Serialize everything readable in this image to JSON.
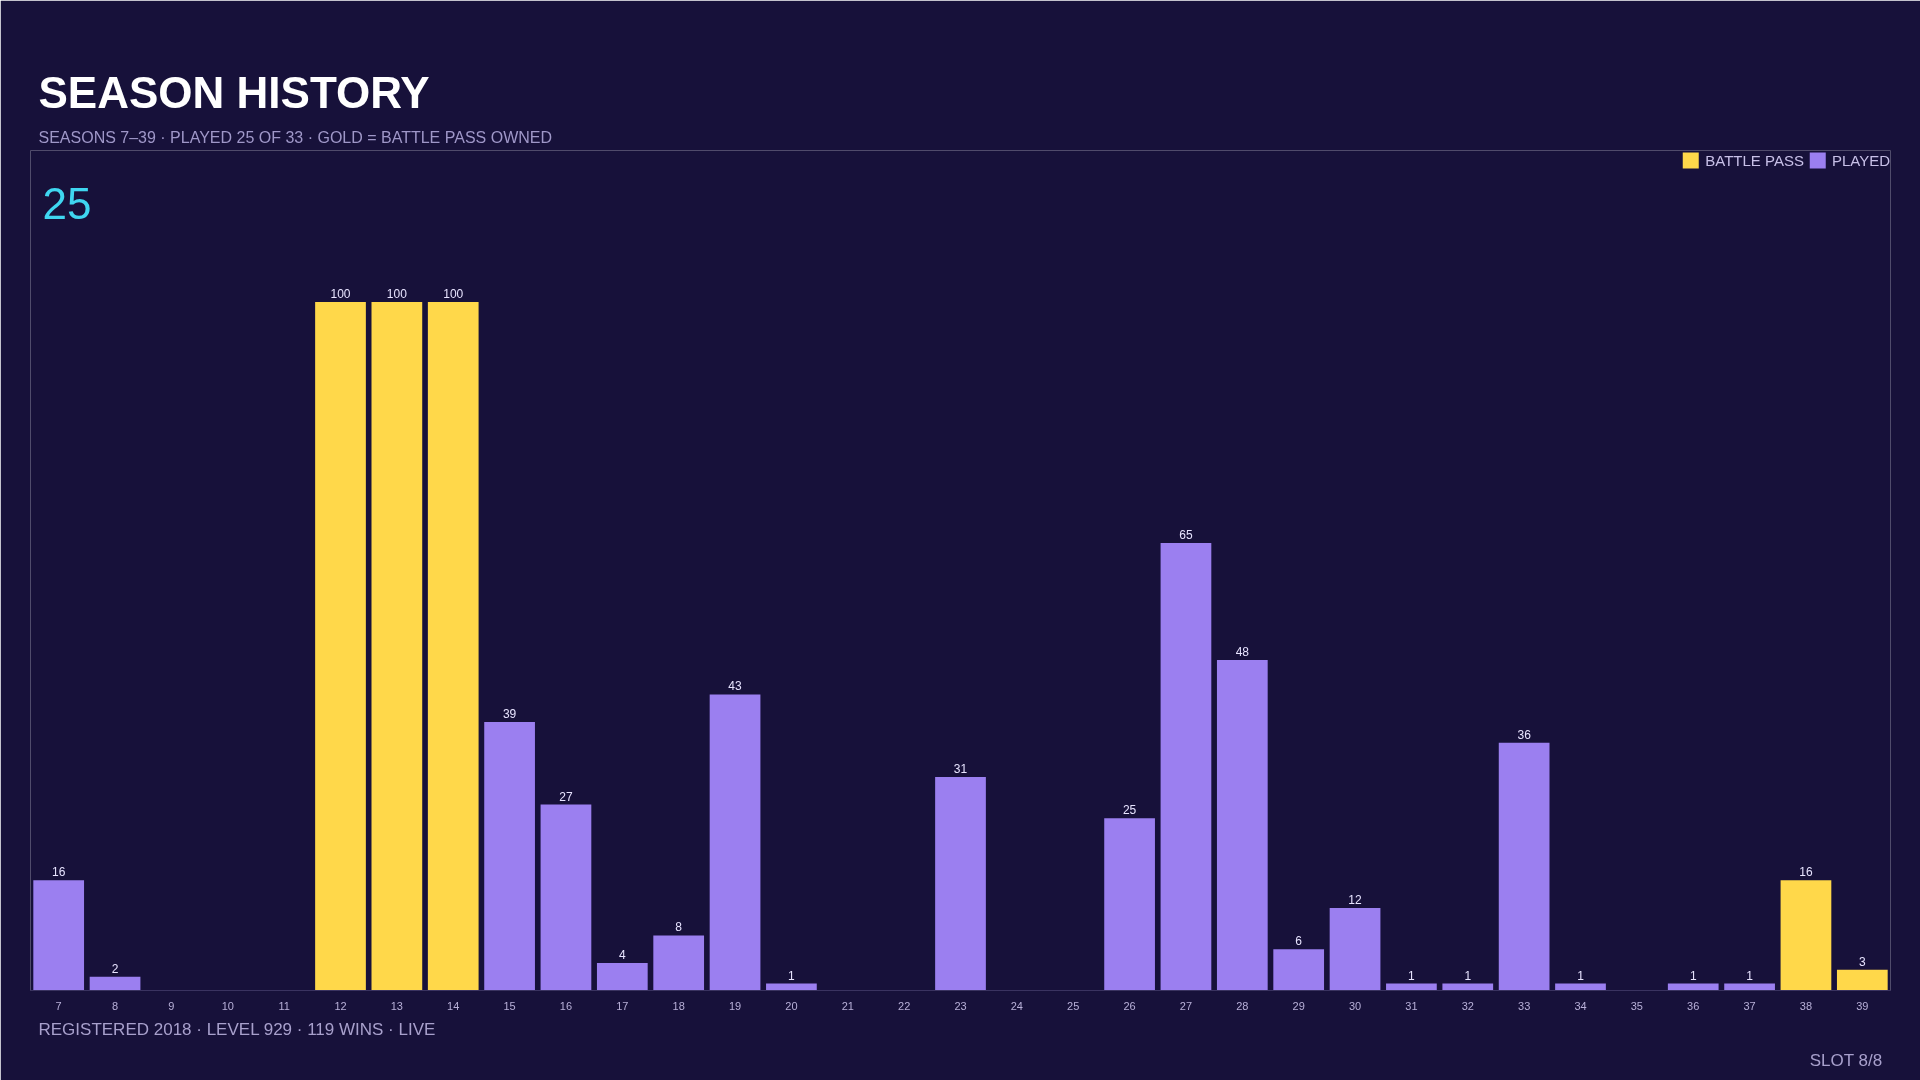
{
  "chart_data": {
    "type": "bar",
    "title": "SEASON HISTORY",
    "subtitle": "SEASONS 7–39  ·  PLAYED 25 OF 33  ·  GOLD = BATTLE PASS OWNED",
    "annotations": [
      "25",
      "REGISTERED 2018  ·  LEVEL 929  ·  119 WINS  ·  LIVE",
      "SLOT 8/8"
    ],
    "categories": [
      "7",
      "8",
      "9",
      "10",
      "11",
      "12",
      "13",
      "14",
      "15",
      "16",
      "17",
      "18",
      "19",
      "20",
      "21",
      "22",
      "23",
      "24",
      "25",
      "26",
      "27",
      "28",
      "29",
      "30",
      "31",
      "32",
      "33",
      "34",
      "35",
      "36",
      "37",
      "38",
      "39"
    ],
    "series": [
      {
        "name": "BATTLE PASS",
        "color": "#ffd84a",
        "values": [
          null,
          null,
          null,
          null,
          null,
          100,
          100,
          100,
          null,
          null,
          null,
          null,
          null,
          null,
          null,
          null,
          null,
          null,
          null,
          null,
          null,
          null,
          null,
          null,
          null,
          null,
          null,
          null,
          null,
          null,
          null,
          16,
          3
        ]
      },
      {
        "name": "PLAYED",
        "color": "#9b7ff0",
        "values": [
          16,
          2,
          null,
          null,
          null,
          null,
          null,
          null,
          39,
          27,
          4,
          8,
          43,
          1,
          null,
          null,
          31,
          null,
          null,
          25,
          65,
          48,
          6,
          12,
          1,
          1,
          36,
          1,
          null,
          1,
          1,
          null,
          null
        ]
      }
    ],
    "data_labels": true,
    "legend": "top right",
    "grid": false
  }
}
